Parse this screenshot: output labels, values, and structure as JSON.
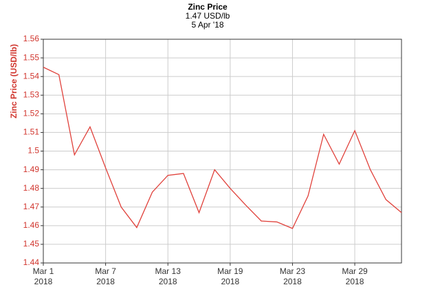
{
  "chart_data": {
    "type": "line",
    "title": "Zinc Price",
    "subtitle": "1.47 USD/lb",
    "date": "5 Apr '18",
    "ylabel": "Zinc Price (USD/lb)",
    "categories": [
      "Mar 1\n2018",
      null,
      null,
      null,
      "Mar 7\n2018",
      null,
      null,
      null,
      "Mar 13\n2018",
      null,
      null,
      null,
      "Mar 19\n2018",
      null,
      null,
      null,
      "Mar 23\n2018",
      null,
      null,
      null,
      "Mar 29\n2018",
      null,
      null,
      null
    ],
    "values": [
      1.545,
      1.541,
      1.498,
      1.513,
      1.491,
      1.47,
      1.459,
      1.478,
      1.487,
      1.488,
      1.467,
      1.49,
      1.48,
      1.471,
      1.4625,
      1.462,
      1.4585,
      1.476,
      1.509,
      1.493,
      1.511,
      1.49,
      1.474,
      1.467
    ],
    "color": "#e0403a",
    "ylim": [
      1.44,
      1.56
    ],
    "yticks": [
      1.44,
      1.45,
      1.46,
      1.47,
      1.48,
      1.49,
      1.5,
      1.51,
      1.52,
      1.53,
      1.54,
      1.55,
      1.56
    ],
    "grid": true
  }
}
